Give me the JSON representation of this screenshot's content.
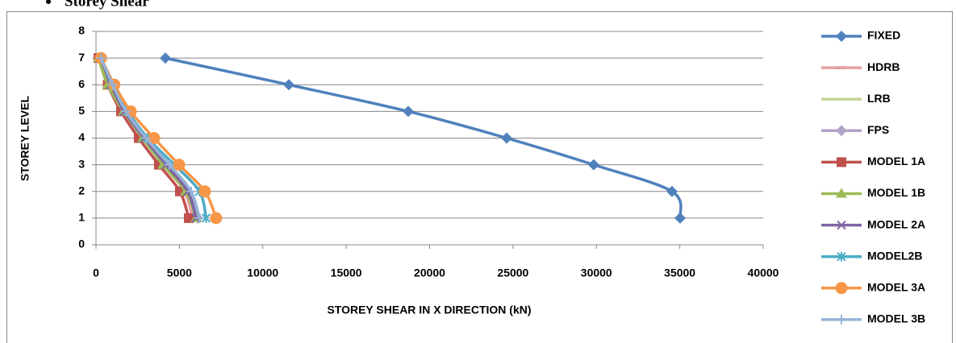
{
  "chart_data": {
    "type": "line",
    "title": "Storey Shear",
    "xlabel": "STOREY SHEAR IN X DIRECTION (kN)",
    "ylabel": "STOREY LEVEL",
    "xlim": [
      0,
      40000
    ],
    "xticks": [
      0,
      5000,
      10000,
      15000,
      20000,
      25000,
      30000,
      35000,
      40000
    ],
    "ylim": [
      0,
      8
    ],
    "yticks": [
      0,
      1,
      2,
      3,
      4,
      5,
      6,
      7,
      8
    ],
    "grid": true,
    "legend": "right",
    "series": [
      {
        "name": "FIXED",
        "color": "#4f81bd",
        "marker": "diamond",
        "x": [
          35020,
          34530,
          29840,
          24620,
          18720,
          11560,
          4160
        ],
        "values": [
          1,
          2,
          3,
          4,
          5,
          6,
          7
        ]
      },
      {
        "name": "HDRB",
        "color": "#e6a0a0",
        "marker": "dash",
        "x": [
          5800,
          5300,
          4100,
          2800,
          1700,
          900,
          300
        ],
        "values": [
          1,
          2,
          3,
          4,
          5,
          6,
          7
        ]
      },
      {
        "name": "LRB",
        "color": "#c3d69b",
        "marker": "none",
        "x": [
          6000,
          5600,
          4300,
          2900,
          1800,
          1000,
          300
        ],
        "values": [
          1,
          2,
          3,
          4,
          5,
          6,
          7
        ]
      },
      {
        "name": "FPS",
        "color": "#b3a2c7",
        "marker": "diamond",
        "x": [
          6100,
          5500,
          4200,
          2900,
          1750,
          950,
          300
        ],
        "values": [
          1,
          2,
          3,
          4,
          5,
          6,
          7
        ]
      },
      {
        "name": "MODEL 1A",
        "color": "#c0504d",
        "marker": "square",
        "x": [
          5560,
          5030,
          3770,
          2560,
          1500,
          700,
          150
        ],
        "values": [
          1,
          2,
          3,
          4,
          5,
          6,
          7
        ]
      },
      {
        "name": "MODEL 1B",
        "color": "#9bbb59",
        "marker": "triangle",
        "x": [
          6000,
          5370,
          4010,
          2800,
          1650,
          700,
          150
        ],
        "values": [
          1,
          2,
          3,
          4,
          5,
          6,
          7
        ]
      },
      {
        "name": "MODEL 2A",
        "color": "#8064a2",
        "marker": "x",
        "x": [
          6000,
          5500,
          4200,
          2900,
          1700,
          900,
          300
        ],
        "values": [
          1,
          2,
          3,
          4,
          5,
          6,
          7
        ]
      },
      {
        "name": "MODEL2B",
        "color": "#4bacc6",
        "marker": "star",
        "x": [
          6600,
          6200,
          4700,
          3100,
          1900,
          1000,
          300
        ],
        "values": [
          1,
          2,
          3,
          4,
          5,
          6,
          7
        ]
      },
      {
        "name": "MODEL 3A",
        "color": "#f79646",
        "marker": "circle",
        "x": [
          7200,
          6530,
          4980,
          3480,
          2080,
          1100,
          300
        ],
        "values": [
          1,
          2,
          3,
          4,
          5,
          6,
          7
        ]
      },
      {
        "name": "MODEL 3B",
        "color": "#95b3d7",
        "marker": "plus",
        "x": [
          6200,
          5700,
          4400,
          3000,
          1800,
          1000,
          300
        ],
        "values": [
          1,
          2,
          3,
          4,
          5,
          6,
          7
        ]
      }
    ]
  }
}
